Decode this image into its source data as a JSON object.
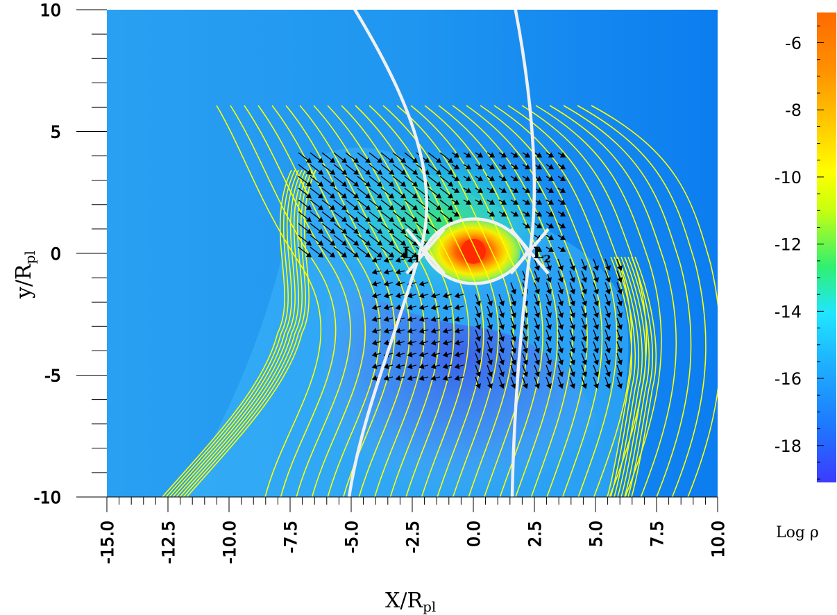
{
  "chart_data": {
    "type": "heatmap",
    "title": "",
    "xlabel": "X/R",
    "xlabel_sub": "pl",
    "ylabel": "y/R",
    "ylabel_sub": "pl",
    "xlim": [
      -15,
      10
    ],
    "ylim": [
      -10,
      10
    ],
    "x_ticks": [
      "-15.0",
      "-12.5",
      "-10.0",
      "-7.5",
      "-5.0",
      "-2.5",
      "0.0",
      "2.5",
      "5.0",
      "7.5",
      "10.0"
    ],
    "x_tick_values": [
      -15,
      -12.5,
      -10,
      -7.5,
      -5,
      -2.5,
      0,
      2.5,
      5,
      7.5,
      10
    ],
    "y_ticks": [
      "10",
      "5",
      "0",
      "-5",
      "-10"
    ],
    "y_tick_values": [
      10,
      5,
      0,
      -5,
      -10
    ],
    "colorbar": {
      "label": "Log ρ",
      "min": -19.1,
      "max": -5.1,
      "ticks": [
        "-6",
        "-8",
        "-10",
        "-12",
        "-14",
        "-16",
        "-18"
      ],
      "tick_values": [
        -6,
        -8,
        -10,
        -12,
        -14,
        -16,
        -18
      ],
      "colormap": [
        "#3b3bff",
        "#1e78ff",
        "#1eb4ff",
        "#20e6ff",
        "#30f070",
        "#c8ff10",
        "#ffff00",
        "#ffc000",
        "#ff9000",
        "#ff6a00"
      ]
    },
    "planet": {
      "x": 0,
      "y": 0,
      "log_rho_center": -5.5
    },
    "roche_lobe_x_extent": [
      -2.0,
      2.0
    ],
    "lagrange_points": [
      {
        "name": "L",
        "sub": "1",
        "x": -2.0,
        "y": 0
      },
      {
        "name": "L",
        "sub": "2",
        "x": 2.4,
        "y": 0
      }
    ],
    "annotations": [
      "L1",
      "L2"
    ],
    "overlays": [
      "yellow magnetic/stream lines",
      "black velocity vectors",
      "white Roche lobe boundary"
    ]
  },
  "colors": {
    "background": "#ffffff",
    "field_base": "#1e8cf0",
    "field_lines": "#ffff00",
    "roche": "#f0f0f0",
    "arrows": "#000000"
  }
}
